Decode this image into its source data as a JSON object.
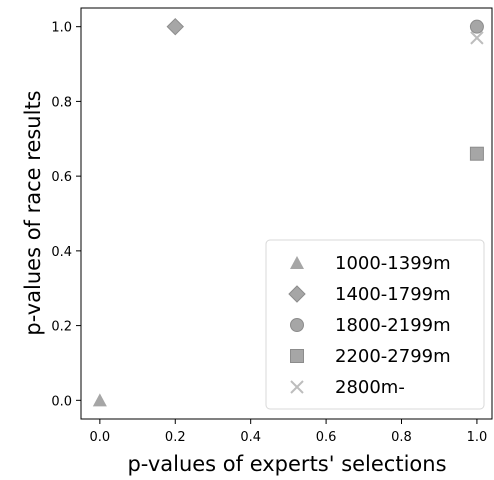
{
  "chart_data": {
    "type": "scatter",
    "xlabel": "p-values of experts' selections",
    "ylabel": "p-values of race results",
    "xlim": [
      -0.05,
      1.04
    ],
    "ylim": [
      -0.05,
      1.05
    ],
    "xticks": [
      "0.0",
      "0.2",
      "0.4",
      "0.6",
      "0.8",
      "1.0"
    ],
    "yticks": [
      "0.0",
      "0.2",
      "0.4",
      "0.6",
      "0.8",
      "1.0"
    ],
    "grid": false,
    "legend_position": "lower-right",
    "color": "#a6a6a6",
    "series": [
      {
        "name": "1000-1399m",
        "marker": "triangle",
        "points": [
          [
            0.0,
            0.0
          ]
        ]
      },
      {
        "name": "1400-1799m",
        "marker": "diamond",
        "points": [
          [
            0.2,
            1.0
          ]
        ]
      },
      {
        "name": "1800-2199m",
        "marker": "circle",
        "points": [
          [
            1.0,
            1.0
          ]
        ]
      },
      {
        "name": "2200-2799m",
        "marker": "square",
        "points": [
          [
            1.0,
            0.66
          ]
        ]
      },
      {
        "name": "2800m-",
        "marker": "x",
        "points": [
          [
            1.0,
            0.97
          ]
        ]
      }
    ]
  }
}
